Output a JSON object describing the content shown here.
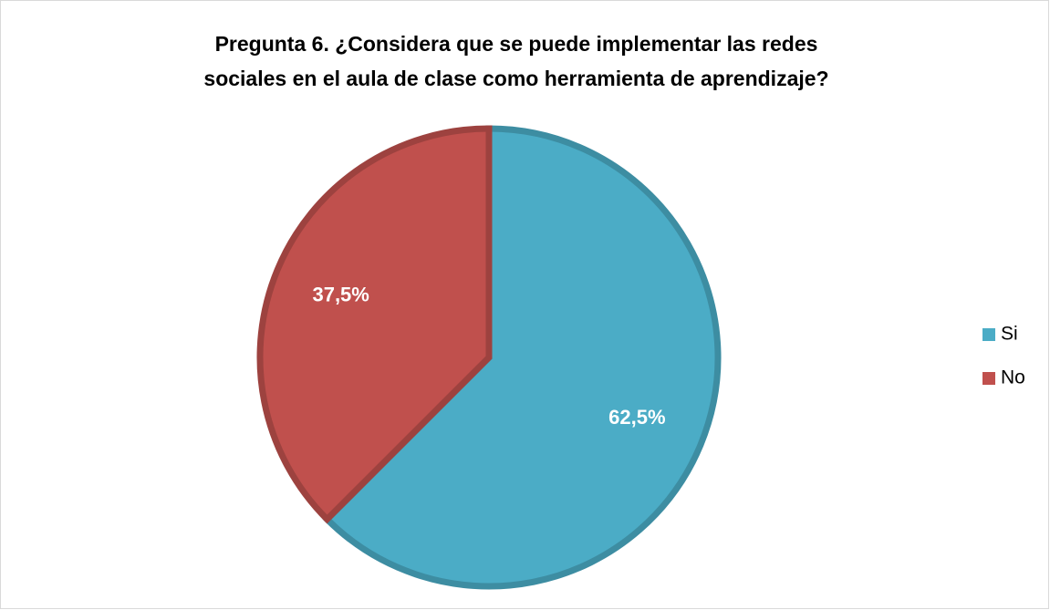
{
  "chart_data": {
    "type": "pie",
    "title": [
      "Pregunta 6. ¿Considera que se puede implementar las redes",
      "sociales en el aula de clase como herramienta de aprendizaje?"
    ],
    "categories": [
      "Si",
      "No"
    ],
    "values": [
      62.5,
      37.5
    ],
    "value_labels": [
      "62,5%",
      "37,5%"
    ],
    "colors": [
      "#4bacc6",
      "#c0504d"
    ],
    "legend": "right"
  }
}
